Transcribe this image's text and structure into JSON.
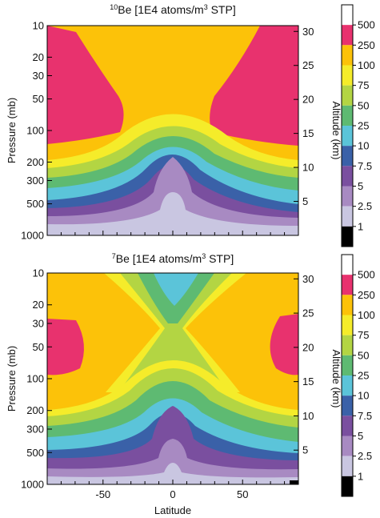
{
  "chart_data": [
    {
      "type": "heatmap",
      "title": "¹⁰Be [1E4 atoms/m³ STP]",
      "title_superscript": "10",
      "title_text": "Be [1E4 atoms/m",
      "title_sup3": "3",
      "title_tail": " STP]",
      "xlabel": "",
      "ylabel": "Pressure (mb)",
      "y2label": "Altitude (km)",
      "xlim": [
        -90,
        90
      ],
      "ylim_pressure": [
        1000,
        10
      ],
      "y_scale": "log",
      "x_ticks": [
        -50,
        0,
        50
      ],
      "x_tick_labels_shown": false,
      "pressure_ticks": [
        10,
        20,
        30,
        50,
        100,
        200,
        300,
        500,
        1000
      ],
      "pressure_tick_labels": [
        "10",
        "20",
        "30",
        "50",
        "100",
        "200",
        "300",
        "500",
        "1000"
      ],
      "altitude_ticks": [
        5,
        10,
        15,
        20,
        25,
        30
      ],
      "altitude_tick_labels": [
        "5",
        "10",
        "15",
        "20",
        "25",
        "30"
      ],
      "description": "Contour field ≥250 at mid-high latitudes above ~150 mb in both hemispheres, 100–250 in tropical stratosphere; decreasing levels downward with an arch of low values (≤5) over the equator near the surface."
    },
    {
      "type": "heatmap",
      "title": "⁷Be [1E4 atoms/m³ STP]",
      "title_superscript": "7",
      "title_text": "Be [1E4 atoms/m",
      "title_sup3": "3",
      "title_tail": " STP]",
      "xlabel": "Latitude",
      "ylabel": "Pressure (mb)",
      "y2label": "Altitude (km)",
      "xlim": [
        -90,
        90
      ],
      "ylim_pressure": [
        1000,
        10
      ],
      "y_scale": "log",
      "x_ticks": [
        -50,
        0,
        50
      ],
      "x_tick_labels": [
        "-50",
        "0",
        "50"
      ],
      "pressure_ticks": [
        10,
        20,
        30,
        50,
        100,
        200,
        300,
        500,
        1000
      ],
      "pressure_tick_labels": [
        "10",
        "20",
        "30",
        "50",
        "100",
        "200",
        "300",
        "500",
        "1000"
      ],
      "altitude_ticks": [
        5,
        10,
        15,
        20,
        25,
        30
      ],
      "altitude_tick_labels": [
        "5",
        "10",
        "15",
        "20",
        "25",
        "30"
      ],
      "description": "Stratosphere mostly 100–250 with ≥250 patches at high latitudes; an X-shaped minimum (10–50) over the equator above ~50 mb; low values (≤5) near the equatorial surface."
    }
  ],
  "colorbar": {
    "levels": [
      500,
      250,
      100,
      75,
      50,
      25,
      10,
      7.5,
      5,
      2.5,
      1
    ],
    "labels": [
      "500",
      "250",
      "100",
      "75",
      "50",
      "25",
      "10",
      "7.5",
      "5",
      "2.5",
      "1"
    ],
    "colors": [
      "#ffffff",
      "#e8326e",
      "#fcc209",
      "#f5ec2a",
      "#b3d543",
      "#5eba72",
      "#5bc4d9",
      "#3a61a8",
      "#7a4f9f",
      "#a88ac2",
      "#c9c6e1",
      "#000000"
    ]
  },
  "palette": {
    "bg_white": "#ffffff",
    "magenta": "#e8326e",
    "orange": "#fcc209",
    "yellow": "#f5ec2a",
    "lime": "#b3d543",
    "green": "#5eba72",
    "cyan": "#5bc4d9",
    "blue": "#3a61a8",
    "purple": "#7a4f9f",
    "lavender": "#a88ac2",
    "pale_lavender": "#c9c6e1",
    "black": "#000000"
  }
}
